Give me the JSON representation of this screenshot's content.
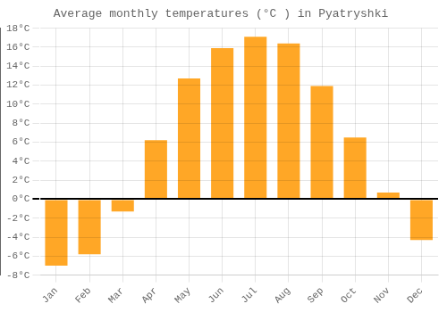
{
  "chart_data": {
    "type": "bar",
    "title": "Average monthly temperatures (°C ) in Pyatryshki",
    "categories": [
      "Jan",
      "Feb",
      "Mar",
      "Apr",
      "May",
      "Jun",
      "Jul",
      "Aug",
      "Sep",
      "Oct",
      "Nov",
      "Dec"
    ],
    "values": [
      -7.0,
      -5.8,
      -1.3,
      6.2,
      12.7,
      15.9,
      17.1,
      16.4,
      11.9,
      6.5,
      0.7,
      -4.3
    ],
    "color": "#FFA726",
    "ylim": [
      -8,
      18
    ],
    "yticks": [
      {
        "value": -8,
        "label": "-8°C"
      },
      {
        "value": -6,
        "label": "-6°C"
      },
      {
        "value": -4,
        "label": "-4°C"
      },
      {
        "value": -2,
        "label": "-2°C"
      },
      {
        "value": 0,
        "label": "0°C"
      },
      {
        "value": 2,
        "label": "2°C"
      },
      {
        "value": 4,
        "label": "4°C"
      },
      {
        "value": 6,
        "label": "6°C"
      },
      {
        "value": 8,
        "label": "8°C"
      },
      {
        "value": 10,
        "label": "10°C"
      },
      {
        "value": 12,
        "label": "12°C"
      },
      {
        "value": 14,
        "label": "14°C"
      },
      {
        "value": 16,
        "label": "16°C"
      },
      {
        "value": 18,
        "label": "18°C"
      }
    ],
    "grid": true
  }
}
